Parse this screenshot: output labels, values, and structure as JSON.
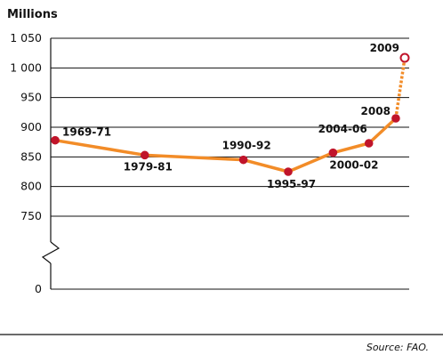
{
  "chart_data": {
    "type": "line",
    "ylabel": "Millions",
    "source": "Source: FAO.",
    "y_ticks": [
      "1 050",
      "1 000",
      "950",
      "900",
      "850",
      "800",
      "750",
      "0"
    ],
    "y_tick_values": [
      1050,
      1000,
      950,
      900,
      850,
      800,
      750,
      0
    ],
    "ylim": [
      750,
      1050
    ],
    "axis_break": true,
    "grid": true,
    "series": [
      {
        "color": "#f28c28",
        "marker_color": "#c0142a",
        "points": [
          {
            "label": "1969-71",
            "x": 1970,
            "y": 878
          },
          {
            "label": "1979-81",
            "x": 1980,
            "y": 853
          },
          {
            "label": "1990-92",
            "x": 1991,
            "y": 845
          },
          {
            "label": "1995-97",
            "x": 1996,
            "y": 825
          },
          {
            "label": "2000-02",
            "x": 2001,
            "y": 857
          },
          {
            "label": "2004-06",
            "x": 2005,
            "y": 873
          },
          {
            "label": "2008",
            "x": 2008,
            "y": 915
          },
          {
            "label": "2009",
            "x": 2009,
            "y": 1017,
            "projected": true
          }
        ]
      }
    ]
  }
}
